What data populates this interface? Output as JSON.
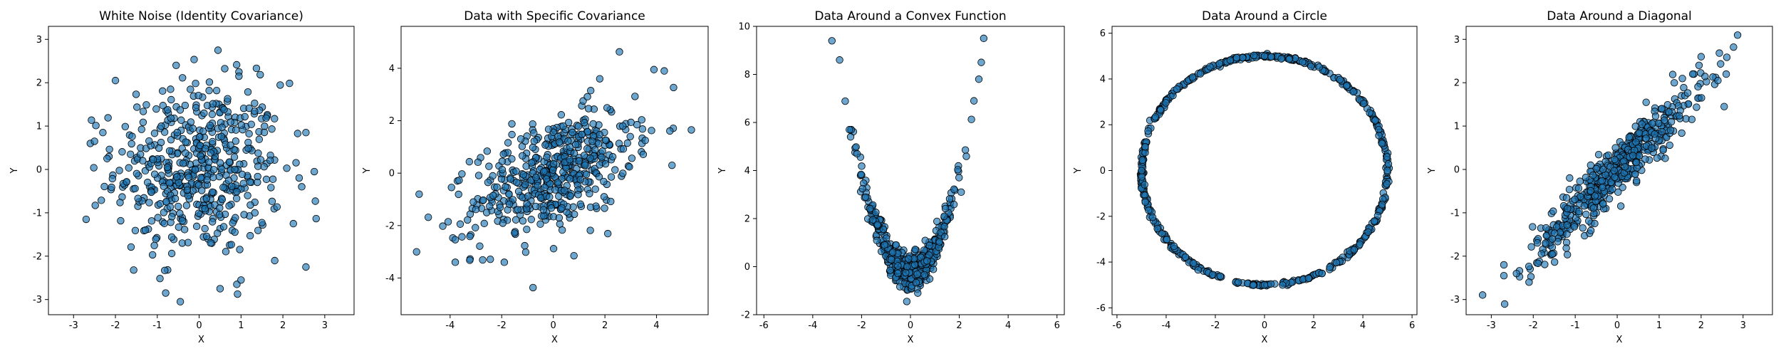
{
  "figure": {
    "background": "#ffffff"
  },
  "style": {
    "marker_fill": "#1f77b4",
    "marker_opacity": 0.65,
    "marker_edge": "#000000"
  },
  "chart_data": [
    {
      "type": "scatter",
      "title": "White Noise (Identity Covariance)",
      "xlabel": "X",
      "ylabel": "Y",
      "xlim": [
        -3.6,
        3.7
      ],
      "ylim": [
        -3.35,
        3.3
      ],
      "xticks": [
        -3,
        -2,
        -1,
        0,
        1,
        2,
        3
      ],
      "yticks": [
        -3,
        -2,
        -1,
        0,
        1,
        2,
        3
      ],
      "generator": "white_noise",
      "n_points": 500,
      "points": [
        [
          -2.7,
          -1.15
        ],
        [
          -2.6,
          0.6
        ],
        [
          -2.5,
          0.65
        ],
        [
          -2.3,
          0.85
        ],
        [
          -2.2,
          0.25
        ],
        [
          -2.0,
          2.05
        ],
        [
          -0.8,
          -2.85
        ],
        [
          -0.45,
          -3.05
        ],
        [
          0.5,
          -2.75
        ],
        [
          0.9,
          -2.65
        ],
        [
          1.0,
          -2.55
        ],
        [
          0.45,
          2.75
        ],
        [
          0.95,
          2.25
        ],
        [
          0.95,
          2.15
        ],
        [
          2.55,
          -2.25
        ],
        [
          2.45,
          -0.4
        ],
        [
          2.75,
          -0.05
        ],
        [
          2.55,
          0.85
        ],
        [
          2.25,
          -1.25
        ],
        [
          -0.55,
          2.4
        ]
      ]
    },
    {
      "type": "scatter",
      "title": "Data with Specific Covariance",
      "xlabel": "X",
      "ylabel": "Y",
      "xlim": [
        -5.9,
        6.0
      ],
      "ylim": [
        -5.4,
        5.6
      ],
      "xticks": [
        -4,
        -2,
        0,
        2,
        4
      ],
      "yticks": [
        -4,
        -2,
        0,
        2,
        4
      ],
      "generator": "specific_covariance",
      "n_points": 500,
      "points": [
        [
          -5.3,
          -3.0
        ],
        [
          -5.2,
          -0.8
        ],
        [
          5.35,
          1.65
        ],
        [
          4.6,
          0.3
        ],
        [
          4.3,
          3.9
        ],
        [
          3.9,
          3.95
        ],
        [
          -3.8,
          -3.4
        ],
        [
          -3.1,
          -1.1
        ],
        [
          -1.9,
          -3.4
        ],
        [
          0.8,
          -3.15
        ],
        [
          1.8,
          3.6
        ]
      ]
    },
    {
      "type": "scatter",
      "title": "Data Around a Convex Function",
      "xlabel": "X",
      "ylabel": "Y",
      "xlim": [
        -6.3,
        6.3
      ],
      "ylim": [
        -2.0,
        10.0
      ],
      "xticks": [
        -6,
        -4,
        -2,
        0,
        2,
        4,
        6
      ],
      "yticks": [
        -2,
        0,
        2,
        4,
        6,
        8,
        10
      ],
      "generator": "parabola",
      "n_points": 500,
      "points": [
        [
          -2.9,
          8.6
        ],
        [
          -2.5,
          5.7
        ],
        [
          -2.45,
          5.4
        ],
        [
          3.0,
          9.5
        ],
        [
          2.9,
          8.5
        ],
        [
          2.8,
          7.8
        ],
        [
          2.6,
          6.9
        ],
        [
          -0.15,
          -1.45
        ],
        [
          0.3,
          -1.1
        ]
      ]
    },
    {
      "type": "scatter",
      "title": "Data Around a Circle",
      "xlabel": "X",
      "ylabel": "Y",
      "xlim": [
        -6.2,
        6.2
      ],
      "ylim": [
        -6.3,
        6.3
      ],
      "xticks": [
        -6,
        -4,
        -2,
        0,
        2,
        4,
        6
      ],
      "yticks": [
        -6,
        -4,
        -2,
        0,
        2,
        4,
        6
      ],
      "generator": "circle",
      "radius": 5.0,
      "n_points": 500,
      "points": [
        [
          0,
          5
        ],
        [
          0,
          -5
        ],
        [
          5,
          0
        ],
        [
          -5,
          0
        ]
      ]
    },
    {
      "type": "scatter",
      "title": "Data Around a Diagonal",
      "xlabel": "X",
      "ylabel": "Y",
      "xlim": [
        -3.6,
        3.7
      ],
      "ylim": [
        -3.35,
        3.3
      ],
      "xticks": [
        -3,
        -2,
        -1,
        0,
        1,
        2,
        3
      ],
      "yticks": [
        -3,
        -2,
        -1,
        0,
        1,
        2,
        3
      ],
      "generator": "diagonal",
      "n_points": 500,
      "points": [
        [
          -2.7,
          -2.45
        ],
        [
          -2.7,
          -2.2
        ],
        [
          -2.4,
          -2.4
        ],
        [
          -2.1,
          -2.6
        ],
        [
          2.55,
          1.45
        ],
        [
          2.0,
          2.6
        ],
        [
          2.4,
          2.05
        ],
        [
          1.95,
          2.4
        ],
        [
          1.8,
          2.2
        ]
      ]
    }
  ]
}
